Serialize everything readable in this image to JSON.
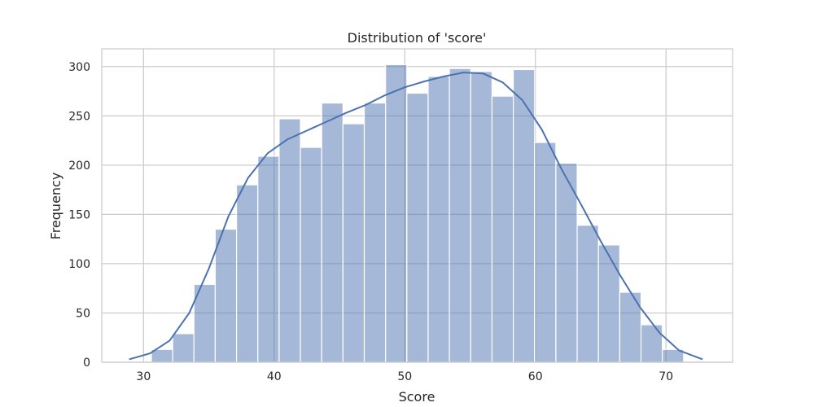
{
  "chart_data": {
    "type": "bar",
    "title": "Distribution of 'score'",
    "xlabel": "Score",
    "ylabel": "Frequency",
    "xlim": [
      26.8,
      75.1
    ],
    "ylim": [
      0,
      318
    ],
    "xticks": [
      30,
      40,
      50,
      60,
      70
    ],
    "yticks": [
      0,
      50,
      100,
      150,
      200,
      250,
      300
    ],
    "grid": true,
    "bar_color": "#4c72b0",
    "bin_edges": [
      30.6,
      32.23,
      33.86,
      35.49,
      37.12,
      38.75,
      40.38,
      42.01,
      43.64,
      45.27,
      46.9,
      48.53,
      50.16,
      51.79,
      53.42,
      55.05,
      56.68,
      58.31,
      59.94,
      61.57,
      63.2,
      64.83,
      66.46,
      68.09,
      69.72,
      71.35
    ],
    "values": [
      13,
      29,
      79,
      135,
      180,
      209,
      247,
      218,
      263,
      242,
      263,
      302,
      273,
      290,
      298,
      295,
      270,
      297,
      223,
      202,
      139,
      119,
      71,
      38,
      13
    ],
    "kde": {
      "x": [
        28.9,
        30.5,
        32,
        33.5,
        35,
        36.5,
        38,
        39.5,
        41,
        42.5,
        44,
        45.5,
        47,
        48.5,
        50,
        51.5,
        53,
        54.5,
        56,
        57.5,
        59,
        60.5,
        62,
        63.5,
        65,
        66.5,
        68,
        69.5,
        71,
        72.8
      ],
      "y": [
        3,
        9,
        22,
        50,
        95,
        148,
        187,
        212,
        226,
        235,
        244,
        253,
        261,
        271,
        279,
        285,
        290,
        294,
        293,
        284,
        266,
        236,
        196,
        160,
        123,
        88,
        56,
        30,
        12,
        3
      ]
    }
  }
}
